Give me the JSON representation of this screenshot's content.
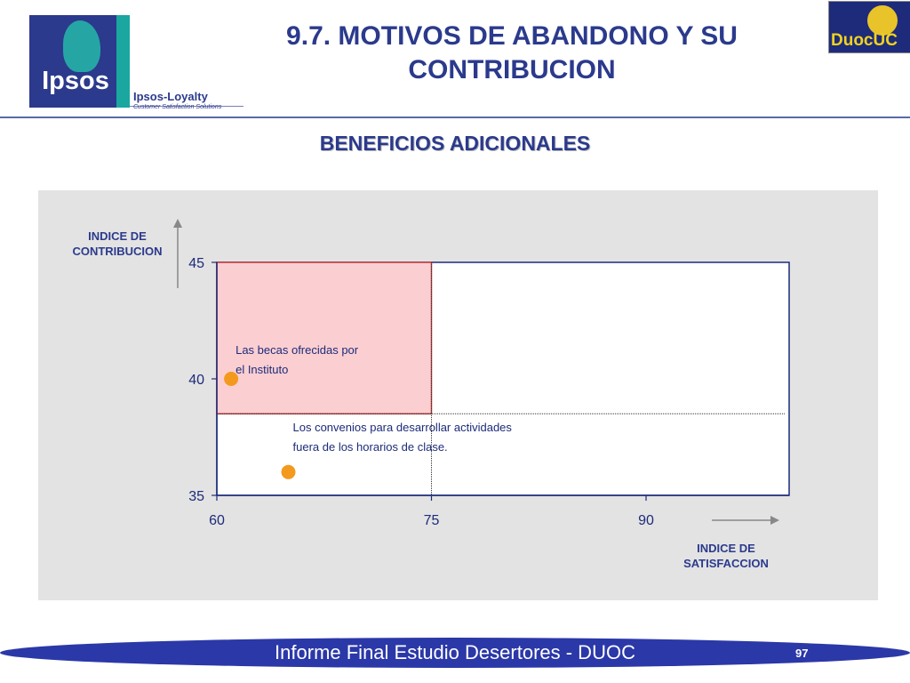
{
  "header": {
    "title": "9.7. MOTIVOS DE ABANDONO Y SU\nCONTRIBUCION",
    "logo_left_text": "Ipsos",
    "logo_sub": "Ipsos-Loyalty",
    "logo_tagline": "Customer Satisfaction Solutions",
    "logo_right_text": "DuocUC"
  },
  "subtitle": "BENEFICIOS ADICIONALES",
  "colors": {
    "brand_blue": "#2b3a8c",
    "quadrant_fill": "#fbcfd2",
    "quadrant_border": "#c0393b",
    "point": "#f39a1e",
    "panel_bg": "#e3e3e3"
  },
  "chart_data": {
    "type": "scatter",
    "ylabel": "INDICE DE\nCONTRIBUCION",
    "xlabel": "INDICE DE\nSATISFACCION",
    "xlim": [
      60,
      100
    ],
    "ylim": [
      35,
      45
    ],
    "xticks": [
      60,
      75,
      90
    ],
    "yticks": [
      35,
      40,
      45
    ],
    "reference_x": 75,
    "reference_y": 38.5,
    "highlight_region": {
      "x": [
        60,
        75
      ],
      "y": [
        38.5,
        45
      ]
    },
    "points": [
      {
        "label": "Las becas ofrecidas por\nel Instituto",
        "x": 61,
        "y": 40
      },
      {
        "label": "Los convenios para desarrollar actividades\nfuera de los horarios de clase.",
        "x": 65,
        "y": 36
      }
    ]
  },
  "footer": {
    "text": "Informe Final Estudio Desertores - DUOC",
    "page": "97"
  }
}
